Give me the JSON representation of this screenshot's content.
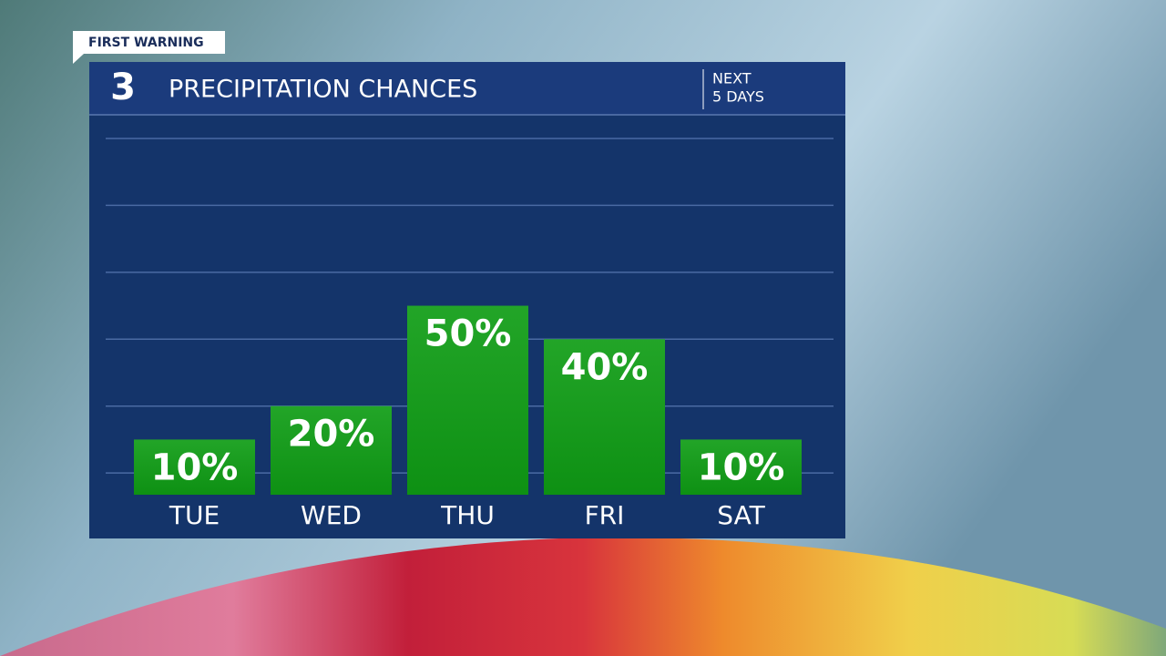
{
  "chart_data": {
    "type": "bar",
    "badge": "FIRST WARNING",
    "logo": "3",
    "title": "PRECIPITATION CHANCES",
    "subtitle_lines": [
      "NEXT",
      "5 DAYS"
    ],
    "categories": [
      "TUE",
      "WED",
      "THU",
      "FRI",
      "SAT"
    ],
    "values": [
      10,
      20,
      50,
      40,
      10
    ],
    "value_labels": [
      "10%",
      "20%",
      "50%",
      "40%",
      "10%"
    ],
    "color": "#0f9d15",
    "ylim": [
      -6.5,
      100
    ],
    "yticks": [
      0,
      20,
      40,
      60,
      80,
      100
    ],
    "grid": true
  }
}
